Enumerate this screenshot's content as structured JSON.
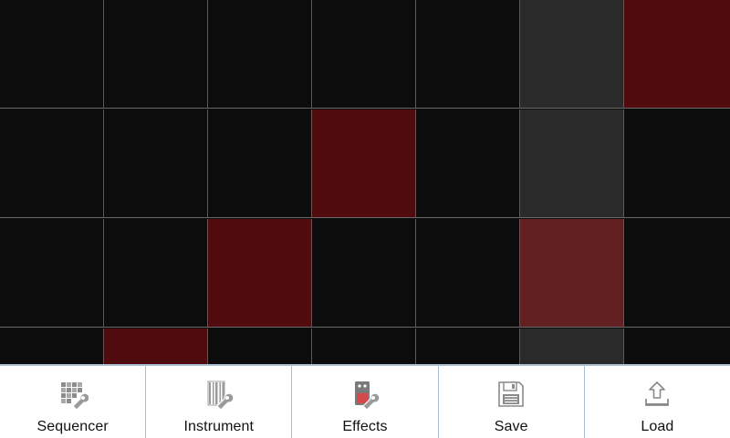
{
  "sequencer": {
    "columns": 7,
    "rows": [
      {
        "cells": [
          false,
          false,
          false,
          false,
          false,
          false,
          true
        ]
      },
      {
        "cells": [
          false,
          false,
          false,
          true,
          false,
          false,
          false
        ]
      },
      {
        "cells": [
          false,
          false,
          true,
          false,
          false,
          true,
          false
        ]
      },
      {
        "cells": [
          false,
          true,
          false,
          false,
          false,
          false,
          false
        ]
      }
    ],
    "playhead_column": 5,
    "colors": {
      "background": "#0c0c0c",
      "playhead": "#2a2a2a",
      "active": "#4f0b0e",
      "active_playhead": "#632022",
      "grid_line": "#5a5a5a"
    }
  },
  "toolbar": {
    "buttons": [
      {
        "id": "sequencer",
        "label": "Sequencer",
        "icon": "sequencer-grid-wrench-icon"
      },
      {
        "id": "instrument",
        "label": "Instrument",
        "icon": "instrument-keys-wrench-icon"
      },
      {
        "id": "effects",
        "label": "Effects",
        "icon": "effects-box-wrench-icon"
      },
      {
        "id": "save",
        "label": "Save",
        "icon": "floppy-disk-icon"
      },
      {
        "id": "load",
        "label": "Load",
        "icon": "upload-arrow-icon"
      }
    ],
    "colors": {
      "background": "#ffffff",
      "divider": "#a9bfd4",
      "icon": "#8a8a8a"
    }
  }
}
